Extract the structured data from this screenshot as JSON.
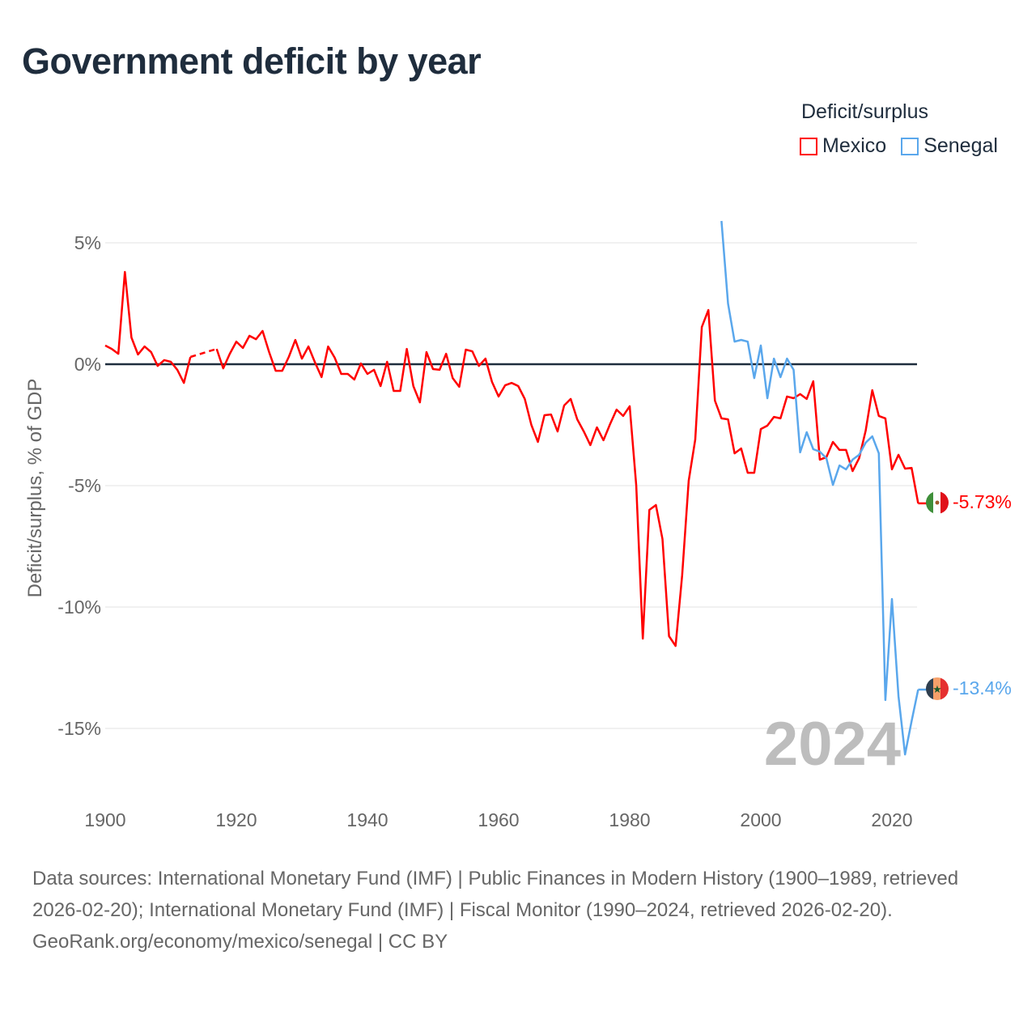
{
  "title": "Government deficit by year",
  "legend": {
    "title": "Deficit/surplus",
    "items": [
      {
        "name": "Mexico",
        "color": "#ff0000"
      },
      {
        "name": "Senegal",
        "color": "#5aa7ec"
      }
    ]
  },
  "year_watermark": "2024",
  "end_labels": {
    "mexico": "-5.73%",
    "senegal": "-13.4%"
  },
  "footer": {
    "sources": "Data sources: International Monetary Fund (IMF) | Public Finances in Modern History (1900–1989, retrieved 2026-02-20); International Monetary Fund (IMF) | Fiscal Monitor (1990–2024, retrieved 2026-02-20).",
    "credit": "GeoRank.org/economy/mexico/senegal | CC BY"
  },
  "chart_data": {
    "type": "line",
    "title": "Government deficit by year",
    "xlabel": "",
    "ylabel": "Deficit/surplus, % of GDP",
    "xlim": [
      1900,
      2024
    ],
    "ylim": [
      -17,
      6.5
    ],
    "xticks": [
      1900,
      1920,
      1940,
      1960,
      1980,
      2000,
      2020
    ],
    "xtick_labels": [
      "1900",
      "1920",
      "1940",
      "1960",
      "1980",
      "2000",
      "2020"
    ],
    "yticks": [
      5,
      0,
      -5,
      -10,
      -15
    ],
    "ytick_labels": [
      "5%",
      "0%",
      "-5%",
      "-10%",
      "-15%"
    ],
    "grid": true,
    "legend_position": "top-right",
    "series": [
      {
        "name": "Mexico",
        "color": "#ff0000",
        "start_year": 1900,
        "values": [
          0.77,
          0.63,
          0.43,
          3.8,
          1.1,
          0.4,
          0.73,
          0.5,
          -0.07,
          0.17,
          0.1,
          -0.23,
          -0.77,
          0.3,
          null,
          null,
          null,
          0.63,
          -0.17,
          0.43,
          0.93,
          0.67,
          1.17,
          1.03,
          1.37,
          0.5,
          -0.27,
          -0.27,
          0.3,
          1.0,
          0.23,
          0.73,
          0.07,
          -0.53,
          0.73,
          0.27,
          -0.4,
          -0.4,
          -0.63,
          0.03,
          -0.4,
          -0.23,
          -0.9,
          0.1,
          -1.1,
          -1.1,
          0.63,
          -0.9,
          -1.57,
          0.5,
          -0.2,
          -0.23,
          0.43,
          -0.57,
          -0.93,
          0.6,
          0.53,
          -0.07,
          0.23,
          -0.73,
          -1.33,
          -0.87,
          -0.77,
          -0.9,
          -1.43,
          -2.5,
          -3.2,
          -2.1,
          -2.07,
          -2.77,
          -1.7,
          -1.43,
          -2.27,
          -2.77,
          -3.33,
          -2.6,
          -3.13,
          -2.47,
          -1.87,
          -2.13,
          -1.73,
          -5.0,
          -11.3,
          -6.0,
          -5.8,
          -7.2,
          -11.2,
          -11.6,
          -8.7,
          -4.8,
          -3.1,
          1.53,
          2.23,
          -1.5,
          -2.23,
          -2.27,
          -3.67,
          -3.47,
          -4.47,
          -4.47,
          -2.67,
          -2.53,
          -2.17,
          -2.23,
          -1.33,
          -1.4,
          -1.23,
          -1.43,
          -0.7,
          -3.93,
          -3.83,
          -3.2,
          -3.53,
          -3.53,
          -4.4,
          -3.87,
          -2.73,
          -1.07,
          -2.13,
          -2.23,
          -4.33,
          -3.73,
          -4.3,
          -4.27,
          -5.73
        ]
      },
      {
        "name": "Senegal",
        "color": "#5aa7ec",
        "start_year": 1994,
        "values": [
          5.9,
          2.5,
          0.93,
          1.0,
          0.93,
          -0.57,
          0.77,
          -1.4,
          0.23,
          -0.53,
          0.23,
          -0.23,
          -3.63,
          -2.8,
          -3.5,
          -3.6,
          -3.87,
          -4.97,
          -4.17,
          -4.33,
          -3.93,
          -3.73,
          -3.23,
          -2.97,
          -3.67,
          -13.83,
          -9.67,
          -13.67,
          -16.07,
          -14.7,
          -13.4
        ]
      }
    ]
  }
}
